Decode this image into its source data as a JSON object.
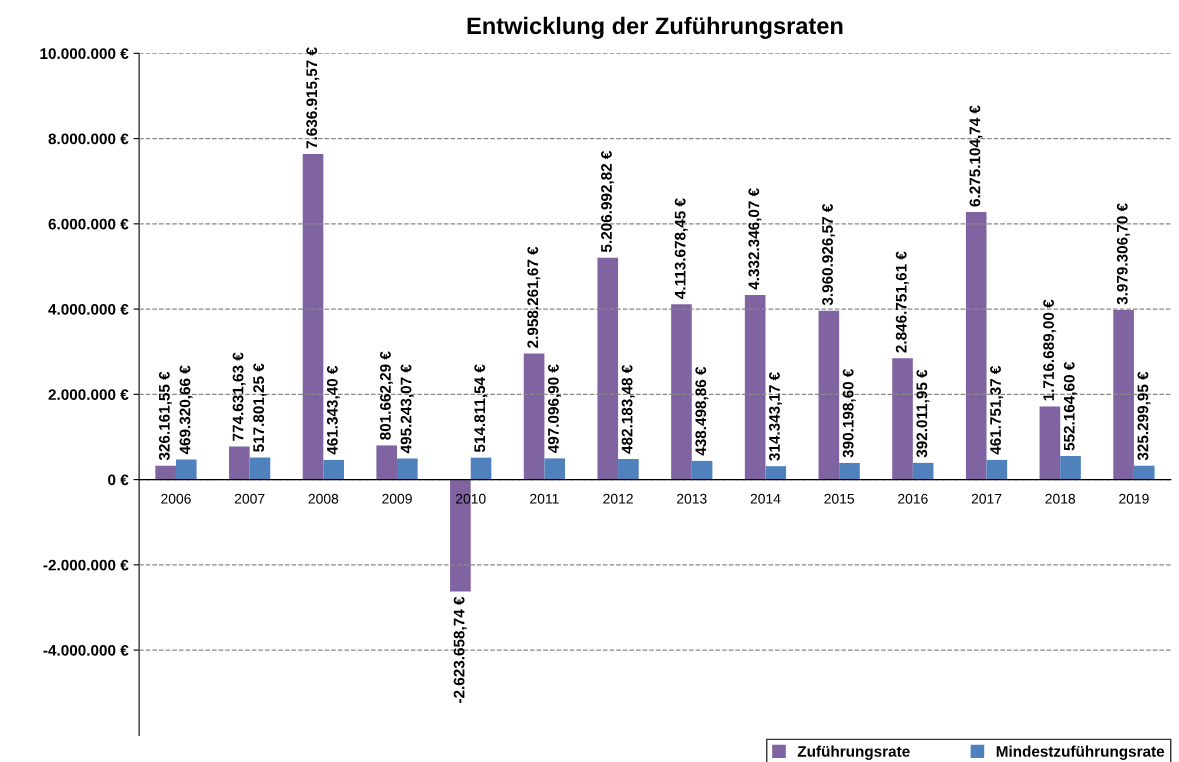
{
  "chart_data": {
    "type": "bar",
    "title": "Entwicklung der Zuführungsraten",
    "categories": [
      "2006",
      "2007",
      "2008",
      "2009",
      "2010",
      "2011",
      "2012",
      "2013",
      "2014",
      "2015",
      "2016",
      "2017",
      "2018",
      "2019"
    ],
    "series": [
      {
        "name": "Zuführungsrate",
        "color": "#8064a2",
        "values": [
          326161.55,
          774631.63,
          7636915.57,
          801662.29,
          -2623658.74,
          2958261.67,
          5206992.82,
          4113678.45,
          4332346.07,
          3960926.57,
          2846751.61,
          6275104.74,
          1716689.0,
          3979306.7
        ],
        "value_labels": [
          "326.161,55 €",
          "774.631,63 €",
          "7.636.915,57 €",
          "801.662,29 €",
          "-2.623.658,74 €",
          "2.958.261,67 €",
          "5.206.992,82 €",
          "4.113.678,45 €",
          "4.332.346,07 €",
          "3.960.926,57 €",
          "2.846.751,61 €",
          "6.275.104,74 €",
          "1.716.689,00 €",
          "3.979.306,70 €"
        ]
      },
      {
        "name": "Mindestzuführungsrate",
        "color": "#4f81bd",
        "values": [
          469320.66,
          517801.25,
          461343.4,
          495243.07,
          514811.54,
          497096.9,
          482183.48,
          438498.86,
          314343.17,
          390198.6,
          392011.95,
          461751.37,
          552164.6,
          325299.95
        ],
        "value_labels": [
          "469.320,66 €",
          "517.801,25 €",
          "461.343,40 €",
          "495.243,07 €",
          "514.811,54 €",
          "497.096,90 €",
          "482.183,48 €",
          "438.498,86 €",
          "314.343,17 €",
          "390.198,60 €",
          "392.011,95 €",
          "461.751,37 €",
          "552.164,60 €",
          "325.299,95 €"
        ]
      }
    ],
    "ylim": [
      -6000000,
      10000000
    ],
    "yticks": [
      {
        "value": -4000000,
        "label": "-4.000.000 €"
      },
      {
        "value": -2000000,
        "label": "-2.000.000 €"
      },
      {
        "value": 0,
        "label": "0 €"
      },
      {
        "value": 2000000,
        "label": "2.000.000 €"
      },
      {
        "value": 4000000,
        "label": "4.000.000 €"
      },
      {
        "value": 6000000,
        "label": "6.000.000 €"
      },
      {
        "value": 8000000,
        "label": "8.000.000 €"
      },
      {
        "value": 10000000,
        "label": "10.000.000 €"
      }
    ],
    "grid": "y",
    "legend": "bottom"
  }
}
